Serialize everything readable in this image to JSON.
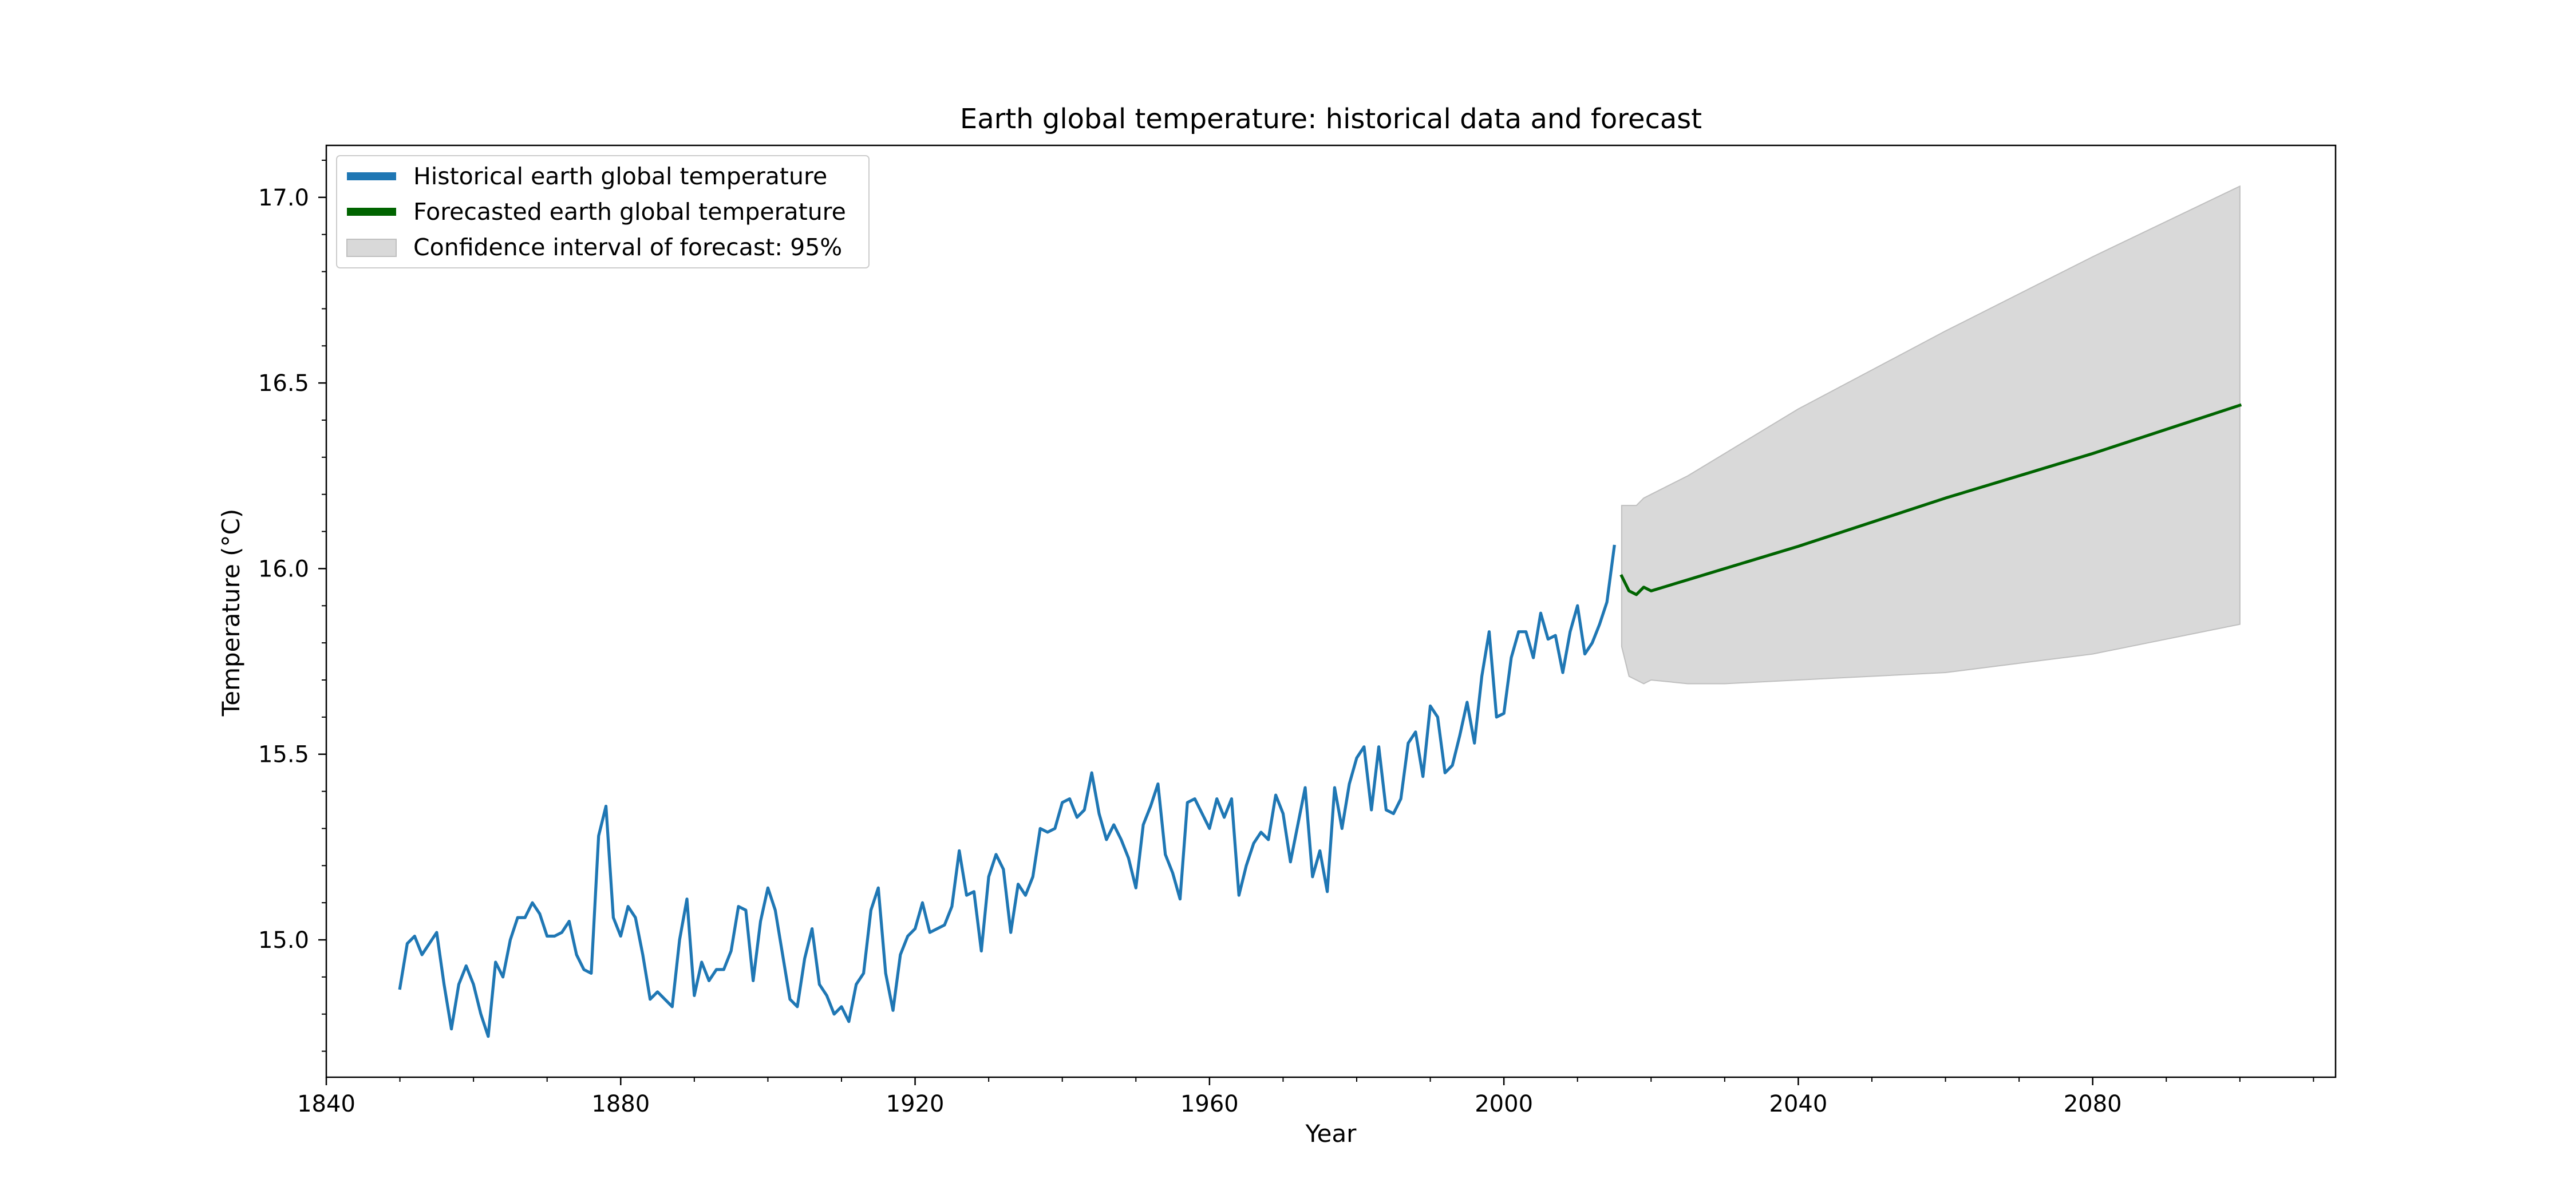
{
  "chart_data": {
    "type": "line",
    "title": "Earth global temperature: historical data and forecast",
    "xlabel": "Year",
    "ylabel": "Temperature (°C)",
    "xlim": [
      1840,
      2113
    ],
    "ylim": [
      14.63,
      17.14
    ],
    "x_ticks": [
      1840,
      1880,
      1920,
      1960,
      2000,
      2040,
      2080
    ],
    "x_tick_labels": [
      "1840",
      "1880",
      "1920",
      "1960",
      "2000",
      "2040",
      "2080"
    ],
    "y_ticks": [
      15.0,
      15.5,
      16.0,
      16.5,
      17.0
    ],
    "y_tick_labels": [
      "15.0",
      "15.5",
      "16.0",
      "16.5",
      "17.0"
    ],
    "grid": false,
    "legend_position": "top-left",
    "legend": [
      {
        "label": "Historical earth global temperature",
        "color": "#1f77b4",
        "kind": "line"
      },
      {
        "label": "Forecasted earth global temperature",
        "color": "#006400",
        "kind": "line"
      },
      {
        "label": "Confidence interval of forecast: 95%",
        "color": "#d9d9d9",
        "kind": "patch"
      }
    ],
    "series": [
      {
        "name": "Historical earth global temperature",
        "color": "#1f77b4",
        "x": [
          1850,
          1851,
          1852,
          1853,
          1854,
          1855,
          1856,
          1857,
          1858,
          1859,
          1860,
          1861,
          1862,
          1863,
          1864,
          1865,
          1866,
          1867,
          1868,
          1869,
          1870,
          1871,
          1872,
          1873,
          1874,
          1875,
          1876,
          1877,
          1878,
          1879,
          1880,
          1881,
          1882,
          1883,
          1884,
          1885,
          1886,
          1887,
          1888,
          1889,
          1890,
          1891,
          1892,
          1893,
          1894,
          1895,
          1896,
          1897,
          1898,
          1899,
          1900,
          1901,
          1902,
          1903,
          1904,
          1905,
          1906,
          1907,
          1908,
          1909,
          1910,
          1911,
          1912,
          1913,
          1914,
          1915,
          1916,
          1917,
          1918,
          1919,
          1920,
          1921,
          1922,
          1923,
          1924,
          1925,
          1926,
          1927,
          1928,
          1929,
          1930,
          1931,
          1932,
          1933,
          1934,
          1935,
          1936,
          1937,
          1938,
          1939,
          1940,
          1941,
          1942,
          1943,
          1944,
          1945,
          1946,
          1947,
          1948,
          1949,
          1950,
          1951,
          1952,
          1953,
          1954,
          1955,
          1956,
          1957,
          1958,
          1959,
          1960,
          1961,
          1962,
          1963,
          1964,
          1965,
          1966,
          1967,
          1968,
          1969,
          1970,
          1971,
          1972,
          1973,
          1974,
          1975,
          1976,
          1977,
          1978,
          1979,
          1980,
          1981,
          1982,
          1983,
          1984,
          1985,
          1986,
          1987,
          1988,
          1989,
          1990,
          1991,
          1992,
          1993,
          1994,
          1995,
          1996,
          1997,
          1998,
          1999,
          2000,
          2001,
          2002,
          2003,
          2004,
          2005,
          2006,
          2007,
          2008,
          2009,
          2010,
          2011,
          2012,
          2013,
          2014,
          2015
        ],
        "values": [
          14.87,
          14.99,
          15.01,
          14.96,
          14.99,
          15.02,
          14.88,
          14.76,
          14.88,
          14.93,
          14.88,
          14.8,
          14.74,
          14.94,
          14.9,
          15.0,
          15.06,
          15.06,
          15.1,
          15.07,
          15.01,
          15.01,
          15.02,
          15.05,
          14.96,
          14.92,
          14.91,
          15.28,
          15.36,
          15.06,
          15.01,
          15.09,
          15.06,
          14.96,
          14.84,
          14.86,
          14.84,
          14.82,
          15.0,
          15.11,
          14.85,
          14.94,
          14.89,
          14.92,
          14.92,
          14.97,
          15.09,
          15.08,
          14.89,
          15.05,
          15.14,
          15.08,
          14.96,
          14.84,
          14.82,
          14.95,
          15.03,
          14.88,
          14.85,
          14.8,
          14.82,
          14.78,
          14.88,
          14.91,
          15.08,
          15.14,
          14.91,
          14.81,
          14.96,
          15.01,
          15.03,
          15.1,
          15.02,
          15.03,
          15.04,
          15.09,
          15.24,
          15.12,
          15.13,
          14.97,
          15.17,
          15.23,
          15.19,
          15.02,
          15.15,
          15.12,
          15.17,
          15.3,
          15.29,
          15.3,
          15.37,
          15.38,
          15.33,
          15.35,
          15.45,
          15.34,
          15.27,
          15.31,
          15.27,
          15.22,
          15.14,
          15.31,
          15.36,
          15.42,
          15.23,
          15.18,
          15.11,
          15.37,
          15.38,
          15.34,
          15.3,
          15.38,
          15.33,
          15.38,
          15.12,
          15.2,
          15.26,
          15.29,
          15.27,
          15.39,
          15.34,
          15.21,
          15.31,
          15.41,
          15.17,
          15.24,
          15.13,
          15.41,
          15.3,
          15.42,
          15.49,
          15.52,
          15.35,
          15.52,
          15.35,
          15.34,
          15.38,
          15.53,
          15.56,
          15.44,
          15.63,
          15.6,
          15.45,
          15.47,
          15.55,
          15.64,
          15.53,
          15.71,
          15.83,
          15.6,
          15.61,
          15.76,
          15.83,
          15.83,
          15.76,
          15.88,
          15.81,
          15.82,
          15.72,
          15.83,
          15.9,
          15.77,
          15.8,
          15.85,
          15.91,
          16.06
        ]
      },
      {
        "name": "Forecasted earth global temperature",
        "color": "#006400",
        "x": [
          2016,
          2017,
          2018,
          2019,
          2020,
          2025,
          2030,
          2040,
          2060,
          2080,
          2100
        ],
        "values": [
          15.98,
          15.94,
          15.93,
          15.95,
          15.94,
          15.97,
          16.0,
          16.06,
          16.19,
          16.31,
          16.44
        ]
      }
    ],
    "confidence_interval": {
      "label": "Confidence interval of forecast: 95%",
      "color": "#d9d9d9",
      "x": [
        2016,
        2017,
        2018,
        2019,
        2020,
        2025,
        2030,
        2040,
        2060,
        2080,
        2100
      ],
      "lower": [
        15.79,
        15.71,
        15.7,
        15.69,
        15.7,
        15.69,
        15.69,
        15.7,
        15.72,
        15.77,
        15.85
      ],
      "upper": [
        16.17,
        16.17,
        16.17,
        16.19,
        16.2,
        16.25,
        16.31,
        16.43,
        16.64,
        16.84,
        17.03
      ]
    }
  }
}
